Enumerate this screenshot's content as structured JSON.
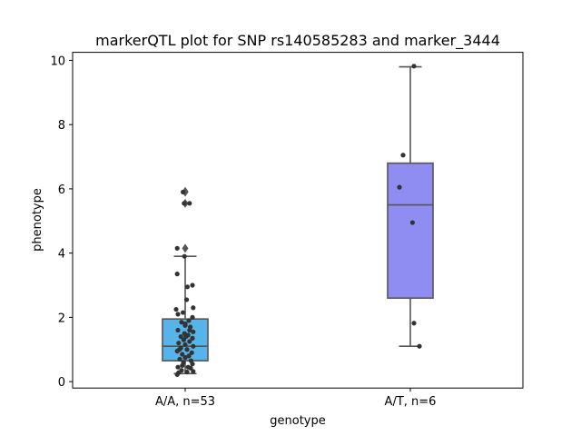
{
  "chart_data": {
    "type": "boxplot",
    "title": "markerQTL plot for SNP rs140585283 and marker_3444",
    "xlabel": "genotype",
    "ylabel": "phenotype",
    "ylim": [
      -0.2,
      10.25
    ],
    "yticks": [
      0,
      2,
      4,
      6,
      8,
      10
    ],
    "categories": [
      "A/A, n=53",
      "A/T, n=6"
    ],
    "grid": false,
    "colors": {
      "box_aa": "#56b4e9",
      "box_at": "#8f8cf2",
      "line": "#555555",
      "point": "#333333"
    },
    "boxes": [
      {
        "category": "A/A, n=53",
        "q1": 0.65,
        "median": 1.1,
        "q3": 1.95,
        "whisker_low": 0.25,
        "whisker_high": 3.9,
        "outliers": [
          4.15,
          5.55,
          5.9,
          5.92
        ],
        "points": [
          {
            "j": -0.22,
            "y": 0.22
          },
          {
            "j": -0.18,
            "y": 0.28
          },
          {
            "j": -0.1,
            "y": 0.35
          },
          {
            "j": 0.05,
            "y": 0.3
          },
          {
            "j": 0.22,
            "y": 0.32
          },
          {
            "j": -0.2,
            "y": 0.45
          },
          {
            "j": 0.15,
            "y": 0.42
          },
          {
            "j": 0.08,
            "y": 0.45
          },
          {
            "j": -0.05,
            "y": 0.6
          },
          {
            "j": 0.2,
            "y": 0.55
          },
          {
            "j": -0.15,
            "y": 0.7
          },
          {
            "j": 0.0,
            "y": 0.75
          },
          {
            "j": 0.1,
            "y": 0.8
          },
          {
            "j": -0.08,
            "y": 0.85
          },
          {
            "j": 0.18,
            "y": 0.9
          },
          {
            "j": -0.22,
            "y": 0.95
          },
          {
            "j": 0.05,
            "y": 1.0
          },
          {
            "j": -0.12,
            "y": 1.05
          },
          {
            "j": 0.22,
            "y": 1.1
          },
          {
            "j": 0.0,
            "y": 1.15
          },
          {
            "j": -0.18,
            "y": 1.2
          },
          {
            "j": 0.12,
            "y": 1.25
          },
          {
            "j": -0.04,
            "y": 1.3
          },
          {
            "j": 0.2,
            "y": 1.35
          },
          {
            "j": -0.12,
            "y": 1.4
          },
          {
            "j": 0.08,
            "y": 1.45
          },
          {
            "j": -0.02,
            "y": 1.5
          },
          {
            "j": 0.22,
            "y": 1.55
          },
          {
            "j": -0.2,
            "y": 1.6
          },
          {
            "j": 0.14,
            "y": 1.7
          },
          {
            "j": 0.0,
            "y": 1.8
          },
          {
            "j": -0.1,
            "y": 1.85
          },
          {
            "j": 0.1,
            "y": 1.9
          },
          {
            "j": 0.2,
            "y": 2.0
          },
          {
            "j": -0.2,
            "y": 2.1
          },
          {
            "j": -0.06,
            "y": 2.15
          },
          {
            "j": 0.22,
            "y": 2.3
          },
          {
            "j": -0.25,
            "y": 2.25
          },
          {
            "j": 0.04,
            "y": 2.55
          },
          {
            "j": 0.06,
            "y": 2.95
          },
          {
            "j": 0.2,
            "y": 3.0
          },
          {
            "j": -0.22,
            "y": 3.35
          },
          {
            "j": -0.02,
            "y": 3.9
          },
          {
            "j": -0.22,
            "y": 4.15
          },
          {
            "j": 0.0,
            "y": 1.75
          },
          {
            "j": 0.16,
            "y": 0.65
          },
          {
            "j": -0.16,
            "y": 1.0
          },
          {
            "j": 0.02,
            "y": 1.4
          },
          {
            "j": -0.08,
            "y": 0.5
          },
          {
            "j": 0.12,
            "y": 1.6
          },
          {
            "j": -0.03,
            "y": 5.55
          },
          {
            "j": 0.12,
            "y": 5.55
          },
          {
            "j": -0.06,
            "y": 5.9
          }
        ]
      },
      {
        "category": "A/T, n=6",
        "q1": 2.6,
        "median": 5.5,
        "q3": 6.8,
        "whisker_low": 1.1,
        "whisker_high": 9.8,
        "outliers": [],
        "points": [
          {
            "j": 0.1,
            "y": 9.82
          },
          {
            "j": -0.2,
            "y": 7.05
          },
          {
            "j": -0.3,
            "y": 6.05
          },
          {
            "j": 0.06,
            "y": 4.95
          },
          {
            "j": 0.1,
            "y": 1.82
          },
          {
            "j": 0.25,
            "y": 1.1
          }
        ]
      }
    ]
  }
}
